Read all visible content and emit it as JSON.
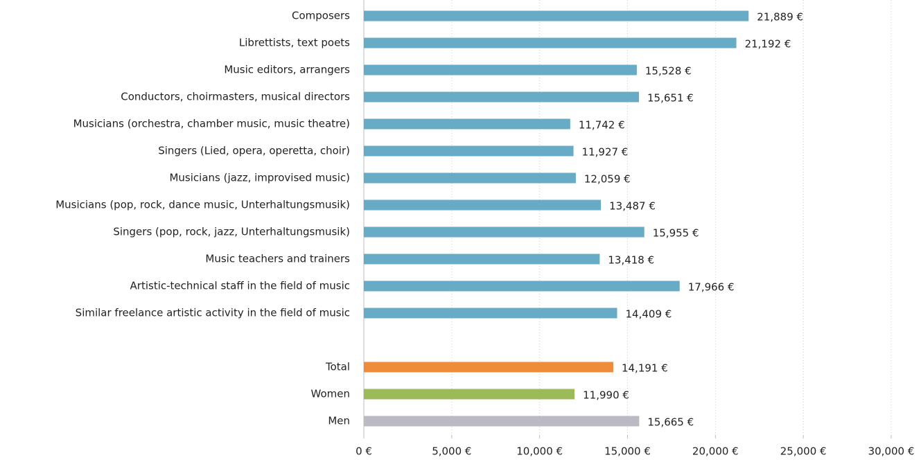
{
  "chart_data": {
    "type": "barh",
    "categories": [
      "Composers",
      "Librettists, text poets",
      "Music editors, arrangers",
      "Conductors, choirmasters, musical directors",
      "Musicians (orchestra, chamber music, music theatre)",
      "Singers (Lied, opera, operetta, choir)",
      "Musicians (jazz, improvised music)",
      "Musicians (pop, rock, dance music, Unterhaltungsmusik)",
      "Singers (pop, rock, jazz, Unterhaltungsmusik)",
      "Music teachers and trainers",
      "Artistic-technical staff in the field of music",
      "Similar freelance artistic activity in the field of music",
      null,
      "Total",
      "Women",
      "Men"
    ],
    "values": [
      21889,
      21192,
      15528,
      15651,
      11742,
      11927,
      12059,
      13487,
      15955,
      13418,
      17966,
      14409,
      null,
      14191,
      11990,
      15665
    ],
    "value_labels": [
      "21,889 €",
      "21,192 €",
      "15,528 €",
      "15,651 €",
      "11,742 €",
      "11,927 €",
      "12,059 €",
      "13,487 €",
      "15,955 €",
      "13,418 €",
      "17,966 €",
      "14,409 €",
      null,
      "14,191 €",
      "11,990 €",
      "15,665 €"
    ],
    "colors": [
      "#67abc6",
      "#67abc6",
      "#67abc6",
      "#67abc6",
      "#67abc6",
      "#67abc6",
      "#67abc6",
      "#67abc6",
      "#67abc6",
      "#67abc6",
      "#67abc6",
      "#67abc6",
      null,
      "#ef8c3c",
      "#9bbb59",
      "#bbbac3"
    ],
    "xlim": [
      0,
      30000
    ],
    "xticks": [
      {
        "value": 0,
        "label": "0 €"
      },
      {
        "value": 5000,
        "label": "5,000 €"
      },
      {
        "value": 10000,
        "label": "10,000 €"
      },
      {
        "value": 15000,
        "label": "15,000 €"
      },
      {
        "value": 20000,
        "label": "20,000 €"
      },
      {
        "value": 25000,
        "label": "25,000 €"
      },
      {
        "value": 30000,
        "label": "30,000 €"
      }
    ],
    "grid": true
  }
}
